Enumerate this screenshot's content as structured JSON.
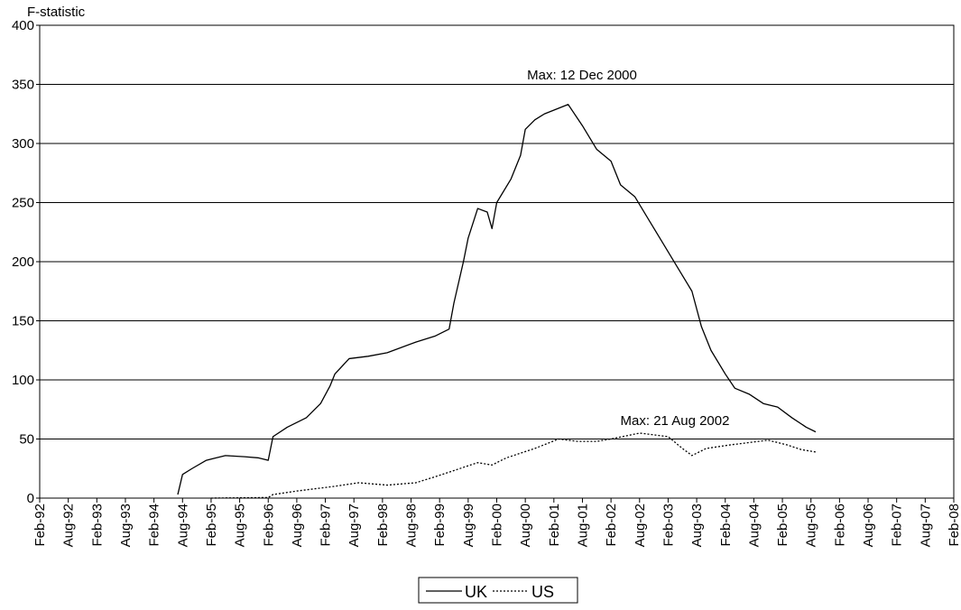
{
  "chart_data": {
    "type": "line",
    "y_label": "F-statistic",
    "annotations": [
      "Max: 12 Dec 2000",
      "Max: 21 Aug 2002"
    ],
    "ylim": [
      0,
      400
    ],
    "yticks": [
      0,
      50,
      100,
      150,
      200,
      250,
      300,
      350,
      400
    ],
    "xlim": [
      "Feb-92",
      "Feb-08"
    ],
    "xticks": [
      "Feb-92",
      "Aug-92",
      "Feb-93",
      "Aug-93",
      "Feb-94",
      "Aug-94",
      "Feb-95",
      "Aug-95",
      "Feb-96",
      "Aug-96",
      "Feb-97",
      "Aug-97",
      "Feb-98",
      "Aug-98",
      "Feb-99",
      "Aug-99",
      "Feb-00",
      "Aug-00",
      "Feb-01",
      "Aug-01",
      "Feb-02",
      "Aug-02",
      "Feb-03",
      "Aug-03",
      "Feb-04",
      "Aug-04",
      "Feb-05",
      "Aug-05",
      "Feb-06",
      "Aug-06",
      "Feb-07",
      "Aug-07",
      "Feb-08"
    ],
    "grid": true,
    "legend": "bottom",
    "series": [
      {
        "name": "UK",
        "color": "#000000",
        "line_style": "solid",
        "x": [
          "Jul-94",
          "Aug-94",
          "Oct-94",
          "Jan-95",
          "May-95",
          "Sep-95",
          "Dec-95",
          "Feb-96",
          "Mar-96",
          "Jun-96",
          "Oct-96",
          "Jan-97",
          "Mar-97",
          "Apr-97",
          "Jul-97",
          "Nov-97",
          "Mar-98",
          "Sep-98",
          "Jan-99",
          "Apr-99",
          "May-99",
          "Jul-99",
          "Aug-99",
          "Oct-99",
          "Dec-99",
          "Jan-00",
          "Feb-00",
          "May-00",
          "Jul-00",
          "Aug-00",
          "Oct-00",
          "Dec-00",
          "May-01",
          "Aug-01",
          "Nov-01",
          "Feb-02",
          "Apr-02",
          "Jul-02",
          "Oct-02",
          "Jan-03",
          "Apr-03",
          "Jul-03",
          "Sep-03",
          "Nov-03",
          "Feb-04",
          "Apr-04",
          "Jul-04",
          "Oct-04",
          "Jan-05",
          "Apr-05",
          "Jul-05",
          "Sep-05"
        ],
        "values": [
          3,
          20,
          25,
          32,
          36,
          35,
          34,
          32,
          52,
          60,
          68,
          80,
          95,
          105,
          118,
          120,
          123,
          132,
          137,
          143,
          165,
          200,
          220,
          245,
          242,
          228,
          250,
          270,
          290,
          312,
          320,
          325,
          333,
          315,
          295,
          285,
          265,
          255,
          235,
          215,
          195,
          175,
          145,
          125,
          105,
          93,
          88,
          80,
          77,
          68,
          60,
          56
        ]
      },
      {
        "name": "US",
        "color": "#000000",
        "line_style": "dotted",
        "x": [
          "Feb-95",
          "Feb-96",
          "Mar-96",
          "Aug-96",
          "Apr-97",
          "Sep-97",
          "Mar-98",
          "Sep-98",
          "Jan-99",
          "Apr-99",
          "Oct-99",
          "Jan-00",
          "Apr-00",
          "Oct-00",
          "Mar-01",
          "Jul-01",
          "Nov-01",
          "Feb-02",
          "Aug-02",
          "Feb-03",
          "May-03",
          "Jul-03",
          "Oct-03",
          "Mar-04",
          "Nov-04",
          "Mar-05",
          "Jun-05",
          "Sep-05"
        ],
        "values": [
          0,
          0.5,
          3,
          6,
          10,
          13,
          11,
          13,
          18,
          22,
          30,
          28,
          34,
          42,
          50,
          48,
          48,
          50,
          55,
          52,
          42,
          36,
          42,
          45,
          49,
          45,
          41,
          39
        ]
      }
    ]
  }
}
